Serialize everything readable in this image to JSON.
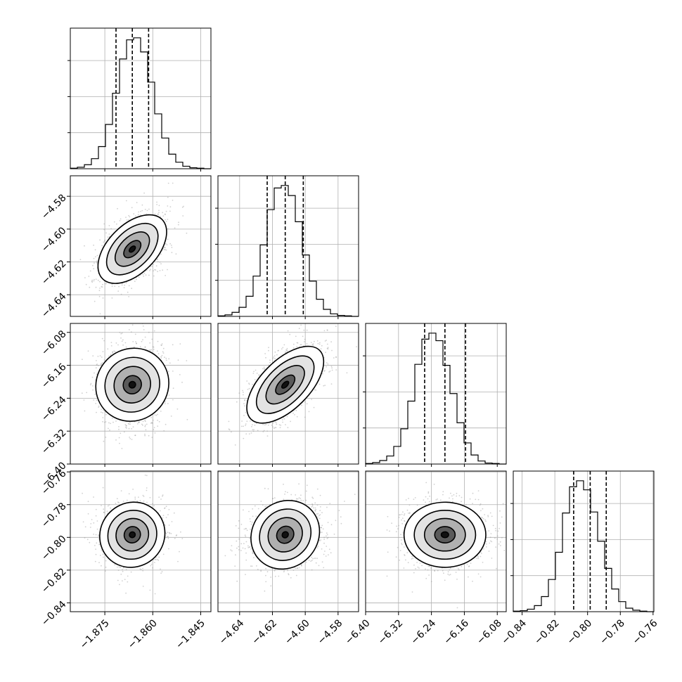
{
  "chart_data": {
    "type": "corner",
    "grid": true,
    "parameters": [
      {
        "ticks": [
          -1.875,
          -1.86,
          -1.845
        ],
        "tick_labels": [
          "−1.875",
          "−1.860",
          "−1.845"
        ],
        "range": [
          -1.8858,
          -1.8418
        ],
        "quantiles": [
          -1.8715,
          -1.8664,
          -1.8613
        ],
        "hist": [
          1,
          3,
          8,
          20,
          44,
          88,
          150,
          218,
          256,
          260,
          232,
          172,
          109,
          61,
          29,
          13,
          5,
          2,
          1,
          0
        ]
      },
      {
        "ticks": [
          -4.64,
          -4.62,
          -4.6,
          -4.58
        ],
        "tick_labels": [
          "−4.64",
          "−4.62",
          "−4.60",
          "−4.58"
        ],
        "range": [
          -4.6532,
          -4.5675
        ],
        "quantiles": [
          -4.6232,
          -4.6122,
          -4.6012
        ],
        "hist": [
          1,
          3,
          8,
          18,
          40,
          80,
          142,
          212,
          255,
          260,
          240,
          188,
          122,
          70,
          34,
          14,
          5,
          2,
          1,
          0
        ]
      },
      {
        "ticks": [
          -6.4,
          -6.32,
          -6.24,
          -6.16,
          -6.08
        ],
        "tick_labels": [
          "−6.40",
          "−6.32",
          "−6.24",
          "−6.16",
          "−6.08"
        ],
        "range": [
          -6.4,
          -6.0582
        ],
        "quantiles": [
          -6.2565,
          -6.2072,
          -6.1571
        ],
        "hist": [
          1,
          3,
          7,
          16,
          35,
          70,
          125,
          198,
          248,
          260,
          245,
          196,
          140,
          82,
          42,
          18,
          6,
          2,
          1,
          0
        ]
      },
      {
        "ticks": [
          -0.84,
          -0.82,
          -0.8,
          -0.78,
          -0.76
        ],
        "tick_labels": [
          "−0.84",
          "−0.82",
          "−0.80",
          "−0.78",
          "−0.76"
        ],
        "range": [
          -0.8454,
          -0.7595
        ],
        "quantiles": [
          -0.8085,
          -0.7984,
          -0.7886
        ],
        "hist": [
          1,
          2,
          5,
          12,
          30,
          64,
          118,
          196,
          248,
          260,
          242,
          198,
          140,
          86,
          45,
          20,
          7,
          3,
          1,
          0
        ]
      }
    ],
    "density_panels": [
      {
        "x": 0,
        "y": 1,
        "rho": 0.5
      },
      {
        "x": 0,
        "y": 2,
        "rho": 0.05
      },
      {
        "x": 1,
        "y": 2,
        "rho": 0.6
      },
      {
        "x": 0,
        "y": 3,
        "rho": 0.05
      },
      {
        "x": 1,
        "y": 3,
        "rho": 0.1
      },
      {
        "x": 2,
        "y": 3,
        "rho": 0.0
      }
    ]
  }
}
